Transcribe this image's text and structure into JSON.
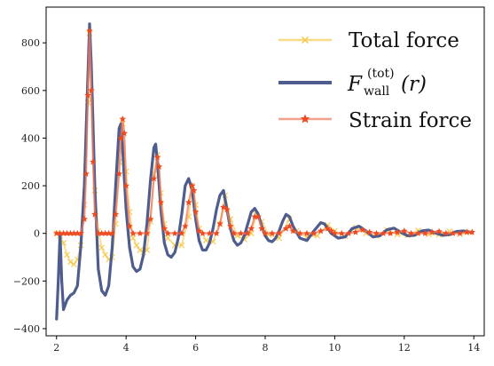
{
  "chart_data": {
    "type": "line",
    "xlim": [
      1.7,
      14.3
    ],
    "ylim": [
      -430,
      950
    ],
    "x_ticks": [
      2,
      4,
      6,
      8,
      10,
      12,
      14
    ],
    "y_ticks": [
      -400,
      -200,
      0,
      200,
      400,
      600,
      800
    ],
    "x_tick_labels": [
      "2",
      "4",
      "6",
      "8",
      "10",
      "12",
      "14"
    ],
    "y_tick_labels": [
      "−400",
      "−200",
      "0",
      "200",
      "400",
      "600",
      "800"
    ],
    "legend_position": "upper-right",
    "series": [
      {
        "name": "Total force",
        "color": "#f5c84a",
        "marker": "x",
        "points": [
          [
            2.0,
            0
          ],
          [
            2.1,
            -10
          ],
          [
            2.2,
            -40
          ],
          [
            2.3,
            -90
          ],
          [
            2.4,
            -120
          ],
          [
            2.5,
            -130
          ],
          [
            2.6,
            -110
          ],
          [
            2.7,
            -50
          ],
          [
            2.8,
            120
          ],
          [
            2.9,
            550
          ],
          [
            2.95,
            840
          ],
          [
            3.0,
            560
          ],
          [
            3.1,
            180
          ],
          [
            3.2,
            10
          ],
          [
            3.3,
            -60
          ],
          [
            3.4,
            -90
          ],
          [
            3.5,
            -110
          ],
          [
            3.6,
            -100
          ],
          [
            3.7,
            40
          ],
          [
            3.8,
            300
          ],
          [
            3.85,
            440
          ],
          [
            3.9,
            460
          ],
          [
            4.0,
            260
          ],
          [
            4.1,
            90
          ],
          [
            4.2,
            -20
          ],
          [
            4.3,
            -50
          ],
          [
            4.4,
            -70
          ],
          [
            4.5,
            -80
          ],
          [
            4.6,
            -70
          ],
          [
            4.7,
            50
          ],
          [
            4.8,
            250
          ],
          [
            4.9,
            330
          ],
          [
            5.0,
            170
          ],
          [
            5.1,
            40
          ],
          [
            5.2,
            -20
          ],
          [
            5.4,
            -50
          ],
          [
            5.6,
            -50
          ],
          [
            5.8,
            70
          ],
          [
            5.9,
            200
          ],
          [
            6.0,
            120
          ],
          [
            6.1,
            20
          ],
          [
            6.3,
            -30
          ],
          [
            6.5,
            -35
          ],
          [
            6.7,
            40
          ],
          [
            6.85,
            160
          ],
          [
            7.0,
            60
          ],
          [
            7.2,
            -10
          ],
          [
            7.4,
            -25
          ],
          [
            7.6,
            0
          ],
          [
            7.75,
            80
          ],
          [
            7.9,
            50
          ],
          [
            8.1,
            -5
          ],
          [
            8.4,
            -20
          ],
          [
            8.7,
            60
          ],
          [
            8.9,
            10
          ],
          [
            9.2,
            -15
          ],
          [
            9.5,
            -10
          ],
          [
            9.8,
            35
          ],
          [
            10.0,
            10
          ],
          [
            10.3,
            -12
          ],
          [
            10.6,
            25
          ],
          [
            10.9,
            0
          ],
          [
            11.2,
            -10
          ],
          [
            11.5,
            15
          ],
          [
            11.8,
            -5
          ],
          [
            12.1,
            -8
          ],
          [
            12.4,
            12
          ],
          [
            12.7,
            -4
          ],
          [
            13.0,
            -6
          ],
          [
            13.3,
            8
          ],
          [
            13.6,
            -3
          ],
          [
            13.9,
            4
          ]
        ]
      },
      {
        "name": "F_wall^(tot)(r)",
        "color": "#4e5d8e",
        "marker": "none",
        "points": [
          [
            2.0,
            -360
          ],
          [
            2.05,
            -200
          ],
          [
            2.1,
            0
          ],
          [
            2.15,
            -200
          ],
          [
            2.2,
            -320
          ],
          [
            2.3,
            -280
          ],
          [
            2.4,
            -260
          ],
          [
            2.5,
            -250
          ],
          [
            2.6,
            -220
          ],
          [
            2.7,
            -50
          ],
          [
            2.8,
            200
          ],
          [
            2.9,
            650
          ],
          [
            2.95,
            880
          ],
          [
            3.0,
            700
          ],
          [
            3.1,
            200
          ],
          [
            3.2,
            -150
          ],
          [
            3.3,
            -240
          ],
          [
            3.4,
            -260
          ],
          [
            3.5,
            -220
          ],
          [
            3.6,
            -60
          ],
          [
            3.7,
            200
          ],
          [
            3.8,
            440
          ],
          [
            3.85,
            460
          ],
          [
            3.9,
            350
          ],
          [
            4.0,
            100
          ],
          [
            4.1,
            -60
          ],
          [
            4.2,
            -140
          ],
          [
            4.3,
            -160
          ],
          [
            4.4,
            -150
          ],
          [
            4.5,
            -90
          ],
          [
            4.6,
            40
          ],
          [
            4.7,
            220
          ],
          [
            4.8,
            360
          ],
          [
            4.85,
            375
          ],
          [
            4.9,
            300
          ],
          [
            5.0,
            100
          ],
          [
            5.1,
            -40
          ],
          [
            5.2,
            -90
          ],
          [
            5.3,
            -100
          ],
          [
            5.4,
            -80
          ],
          [
            5.5,
            -20
          ],
          [
            5.6,
            80
          ],
          [
            5.7,
            200
          ],
          [
            5.8,
            230
          ],
          [
            5.9,
            180
          ],
          [
            6.0,
            60
          ],
          [
            6.1,
            -30
          ],
          [
            6.2,
            -70
          ],
          [
            6.3,
            -70
          ],
          [
            6.4,
            -40
          ],
          [
            6.5,
            20
          ],
          [
            6.6,
            100
          ],
          [
            6.7,
            160
          ],
          [
            6.8,
            180
          ],
          [
            6.9,
            100
          ],
          [
            7.0,
            20
          ],
          [
            7.1,
            -30
          ],
          [
            7.2,
            -50
          ],
          [
            7.3,
            -40
          ],
          [
            7.4,
            -10
          ],
          [
            7.5,
            40
          ],
          [
            7.6,
            90
          ],
          [
            7.7,
            105
          ],
          [
            7.8,
            80
          ],
          [
            7.9,
            30
          ],
          [
            8.0,
            -10
          ],
          [
            8.1,
            -30
          ],
          [
            8.2,
            -35
          ],
          [
            8.3,
            -20
          ],
          [
            8.4,
            10
          ],
          [
            8.5,
            50
          ],
          [
            8.6,
            80
          ],
          [
            8.7,
            70
          ],
          [
            8.8,
            30
          ],
          [
            9.0,
            -20
          ],
          [
            9.2,
            -30
          ],
          [
            9.4,
            10
          ],
          [
            9.6,
            45
          ],
          [
            9.7,
            40
          ],
          [
            9.9,
            0
          ],
          [
            10.1,
            -20
          ],
          [
            10.3,
            -15
          ],
          [
            10.5,
            20
          ],
          [
            10.7,
            30
          ],
          [
            10.9,
            10
          ],
          [
            11.1,
            -15
          ],
          [
            11.3,
            -10
          ],
          [
            11.5,
            15
          ],
          [
            11.7,
            22
          ],
          [
            11.9,
            5
          ],
          [
            12.1,
            -10
          ],
          [
            12.3,
            -8
          ],
          [
            12.5,
            10
          ],
          [
            12.7,
            14
          ],
          [
            12.9,
            2
          ],
          [
            13.1,
            -8
          ],
          [
            13.3,
            -5
          ],
          [
            13.5,
            8
          ],
          [
            13.7,
            10
          ],
          [
            13.9,
            5
          ]
        ]
      },
      {
        "name": "Strain force",
        "color": "#f07a5f",
        "marker_color": "#ee4a20",
        "marker": "star",
        "points": [
          [
            2.0,
            0
          ],
          [
            2.1,
            0
          ],
          [
            2.2,
            0
          ],
          [
            2.3,
            0
          ],
          [
            2.4,
            0
          ],
          [
            2.5,
            0
          ],
          [
            2.6,
            0
          ],
          [
            2.7,
            0
          ],
          [
            2.8,
            60
          ],
          [
            2.85,
            250
          ],
          [
            2.9,
            580
          ],
          [
            2.95,
            850
          ],
          [
            3.0,
            600
          ],
          [
            3.05,
            300
          ],
          [
            3.1,
            80
          ],
          [
            3.2,
            0
          ],
          [
            3.3,
            0
          ],
          [
            3.4,
            0
          ],
          [
            3.5,
            0
          ],
          [
            3.6,
            0
          ],
          [
            3.7,
            80
          ],
          [
            3.8,
            250
          ],
          [
            3.85,
            400
          ],
          [
            3.9,
            480
          ],
          [
            3.95,
            420
          ],
          [
            4.0,
            200
          ],
          [
            4.1,
            30
          ],
          [
            4.2,
            0
          ],
          [
            4.4,
            0
          ],
          [
            4.6,
            0
          ],
          [
            4.7,
            60
          ],
          [
            4.8,
            230
          ],
          [
            4.9,
            320
          ],
          [
            4.95,
            280
          ],
          [
            5.0,
            130
          ],
          [
            5.1,
            20
          ],
          [
            5.2,
            0
          ],
          [
            5.4,
            0
          ],
          [
            5.6,
            0
          ],
          [
            5.7,
            30
          ],
          [
            5.8,
            130
          ],
          [
            5.9,
            200
          ],
          [
            5.95,
            180
          ],
          [
            6.0,
            90
          ],
          [
            6.1,
            10
          ],
          [
            6.2,
            0
          ],
          [
            6.4,
            0
          ],
          [
            6.6,
            0
          ],
          [
            6.7,
            40
          ],
          [
            6.8,
            110
          ],
          [
            6.9,
            100
          ],
          [
            7.0,
            30
          ],
          [
            7.1,
            0
          ],
          [
            7.3,
            0
          ],
          [
            7.5,
            0
          ],
          [
            7.6,
            20
          ],
          [
            7.7,
            70
          ],
          [
            7.8,
            70
          ],
          [
            7.9,
            20
          ],
          [
            8.0,
            0
          ],
          [
            8.2,
            0
          ],
          [
            8.4,
            0
          ],
          [
            8.6,
            20
          ],
          [
            8.7,
            30
          ],
          [
            8.8,
            10
          ],
          [
            9.0,
            0
          ],
          [
            9.2,
            0
          ],
          [
            9.4,
            0
          ],
          [
            9.6,
            10
          ],
          [
            9.8,
            20
          ],
          [
            9.9,
            10
          ],
          [
            10.0,
            0
          ],
          [
            10.2,
            0
          ],
          [
            10.4,
            0
          ],
          [
            10.6,
            5
          ],
          [
            10.8,
            15
          ],
          [
            11.0,
            5
          ],
          [
            11.2,
            0
          ],
          [
            11.4,
            0
          ],
          [
            11.6,
            0
          ],
          [
            11.8,
            5
          ],
          [
            12.0,
            10
          ],
          [
            12.2,
            0
          ],
          [
            12.4,
            0
          ],
          [
            12.6,
            0
          ],
          [
            12.8,
            5
          ],
          [
            13.0,
            8
          ],
          [
            13.2,
            0
          ],
          [
            13.4,
            0
          ],
          [
            13.6,
            0
          ],
          [
            13.8,
            5
          ],
          [
            13.95,
            5
          ]
        ]
      }
    ]
  },
  "legend": {
    "total_label": "Total force",
    "wall_label_main": "F",
    "wall_label_sup": "(tot)",
    "wall_label_sub": "wall",
    "wall_label_arg": "(r)",
    "strain_label": "Strain force"
  }
}
